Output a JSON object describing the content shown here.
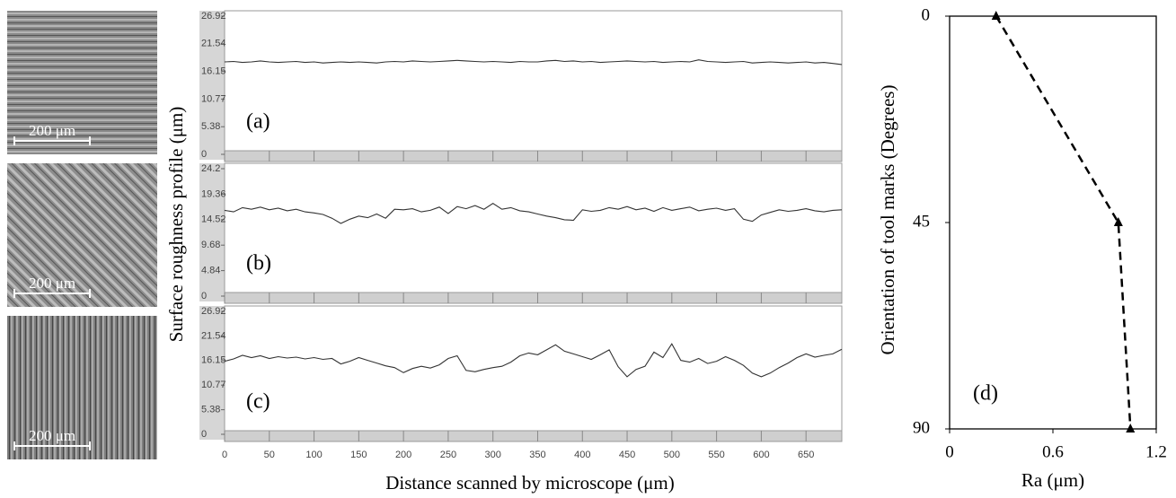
{
  "micrographs": [
    {
      "scale_bar": "200 μm"
    },
    {
      "scale_bar": "200 μm"
    },
    {
      "scale_bar": "200 μm"
    }
  ],
  "chart_data": [
    {
      "type": "line",
      "label": "(a)",
      "ylabel": "Surface roughness profile (μm)",
      "color": "#333333",
      "xlim": [
        0,
        690
      ],
      "ylim": [
        0,
        26.92
      ],
      "yticks": [
        0,
        5.38,
        10.77,
        16.15,
        21.54,
        26.92
      ],
      "x": [
        0,
        10,
        20,
        30,
        40,
        50,
        60,
        70,
        80,
        90,
        100,
        110,
        120,
        130,
        140,
        150,
        160,
        170,
        180,
        190,
        200,
        210,
        220,
        230,
        240,
        250,
        260,
        270,
        280,
        290,
        300,
        310,
        320,
        330,
        340,
        350,
        360,
        370,
        380,
        390,
        400,
        410,
        420,
        430,
        440,
        450,
        460,
        470,
        480,
        490,
        500,
        510,
        520,
        530,
        540,
        550,
        560,
        570,
        580,
        590,
        600,
        610,
        620,
        630,
        640,
        650,
        660,
        670,
        680,
        690
      ],
      "values": [
        18.0,
        18.1,
        17.9,
        18.0,
        18.2,
        18.0,
        17.9,
        18.0,
        18.1,
        17.9,
        18.0,
        17.8,
        17.9,
        18.0,
        17.9,
        18.0,
        17.9,
        17.8,
        18.0,
        18.1,
        18.0,
        18.2,
        18.1,
        18.0,
        18.1,
        18.2,
        18.3,
        18.2,
        18.1,
        18.0,
        18.1,
        18.0,
        17.9,
        18.1,
        18.0,
        18.0,
        18.2,
        18.3,
        18.1,
        18.2,
        18.0,
        18.1,
        17.9,
        18.0,
        18.1,
        18.2,
        18.1,
        18.0,
        18.1,
        17.9,
        18.0,
        18.1,
        18.0,
        18.4,
        18.1,
        18.0,
        17.9,
        18.0,
        18.1,
        17.8,
        17.9,
        18.0,
        17.9,
        17.8,
        17.9,
        18.0,
        17.8,
        17.9,
        17.7,
        17.5
      ]
    },
    {
      "type": "line",
      "label": "(b)",
      "color": "#333333",
      "xlim": [
        0,
        690
      ],
      "ylim": [
        0,
        24.2
      ],
      "yticks": [
        0,
        4.84,
        9.68,
        14.52,
        19.36,
        24.2
      ],
      "x": [
        0,
        10,
        20,
        30,
        40,
        50,
        60,
        70,
        80,
        90,
        100,
        110,
        120,
        130,
        140,
        150,
        160,
        170,
        180,
        190,
        200,
        210,
        220,
        230,
        240,
        250,
        260,
        270,
        280,
        290,
        300,
        310,
        320,
        330,
        340,
        350,
        360,
        370,
        380,
        390,
        400,
        410,
        420,
        430,
        440,
        450,
        460,
        470,
        480,
        490,
        500,
        510,
        520,
        530,
        540,
        550,
        560,
        570,
        580,
        590,
        600,
        610,
        620,
        630,
        640,
        650,
        660,
        670,
        680,
        690
      ],
      "values": [
        16.3,
        16.0,
        16.8,
        16.5,
        16.9,
        16.4,
        16.7,
        16.2,
        16.5,
        16.0,
        15.8,
        15.5,
        14.8,
        13.8,
        14.6,
        15.2,
        14.9,
        15.6,
        14.8,
        16.5,
        16.4,
        16.6,
        16.0,
        16.3,
        16.9,
        15.7,
        17.0,
        16.6,
        17.2,
        16.5,
        17.6,
        16.5,
        16.8,
        16.2,
        16.0,
        15.6,
        15.2,
        14.9,
        14.5,
        14.4,
        16.4,
        16.1,
        16.3,
        16.8,
        16.5,
        17.0,
        16.4,
        16.7,
        16.1,
        16.8,
        16.3,
        16.6,
        16.9,
        16.2,
        16.5,
        16.7,
        16.3,
        16.6,
        14.6,
        14.2,
        15.4,
        15.9,
        16.4,
        16.1,
        16.3,
        16.6,
        16.2,
        16.0,
        16.3,
        16.4
      ]
    },
    {
      "type": "line",
      "label": "(c)",
      "xlabel": "Distance scanned by microscope (μm)",
      "color": "#333333",
      "xlim": [
        0,
        690
      ],
      "ylim": [
        0,
        26.92
      ],
      "yticks": [
        0,
        5.38,
        10.77,
        16.15,
        21.54,
        26.92
      ],
      "xticks": [
        0,
        50,
        100,
        150,
        200,
        250,
        300,
        350,
        400,
        450,
        500,
        550,
        600,
        650
      ],
      "x": [
        0,
        10,
        20,
        30,
        40,
        50,
        60,
        70,
        80,
        90,
        100,
        110,
        120,
        130,
        140,
        150,
        160,
        170,
        180,
        190,
        200,
        210,
        220,
        230,
        240,
        250,
        260,
        270,
        280,
        290,
        300,
        310,
        320,
        330,
        340,
        350,
        360,
        370,
        380,
        390,
        400,
        410,
        420,
        430,
        440,
        450,
        460,
        470,
        480,
        490,
        500,
        510,
        520,
        530,
        540,
        550,
        560,
        570,
        580,
        590,
        600,
        610,
        620,
        630,
        640,
        650,
        660,
        670,
        680,
        690
      ],
      "values": [
        16.0,
        16.5,
        17.3,
        16.8,
        17.2,
        16.6,
        17.0,
        16.7,
        16.9,
        16.5,
        16.8,
        16.4,
        16.6,
        15.4,
        16.0,
        16.8,
        16.2,
        15.6,
        15.0,
        14.6,
        13.5,
        14.4,
        14.9,
        14.5,
        15.2,
        16.6,
        17.2,
        14.0,
        13.7,
        14.2,
        14.6,
        14.9,
        15.8,
        17.2,
        17.8,
        17.4,
        18.5,
        19.6,
        18.2,
        17.6,
        17.0,
        16.4,
        17.4,
        18.5,
        14.8,
        12.6,
        14.2,
        14.9,
        18.0,
        16.8,
        19.8,
        16.2,
        15.8,
        16.6,
        15.5,
        16.0,
        17.0,
        16.2,
        15.1,
        13.4,
        12.6,
        13.4,
        14.6,
        15.6,
        16.8,
        17.6,
        16.9,
        17.3,
        17.6,
        18.6
      ]
    },
    {
      "type": "line",
      "label": "(d)",
      "xlabel": "Ra (μm)",
      "ylabel": "Orientation of tool marks (Degrees)",
      "color": "#000000",
      "line_style": "dashed",
      "marker": "triangle",
      "y_inverted": true,
      "xlim": [
        0,
        1.2
      ],
      "ylim": [
        0,
        90
      ],
      "xticks": [
        0,
        0.6,
        1.2
      ],
      "yticks": [
        0,
        45,
        90
      ],
      "x": [
        0.27,
        0.98,
        1.05
      ],
      "values": [
        0,
        45,
        90
      ]
    }
  ]
}
